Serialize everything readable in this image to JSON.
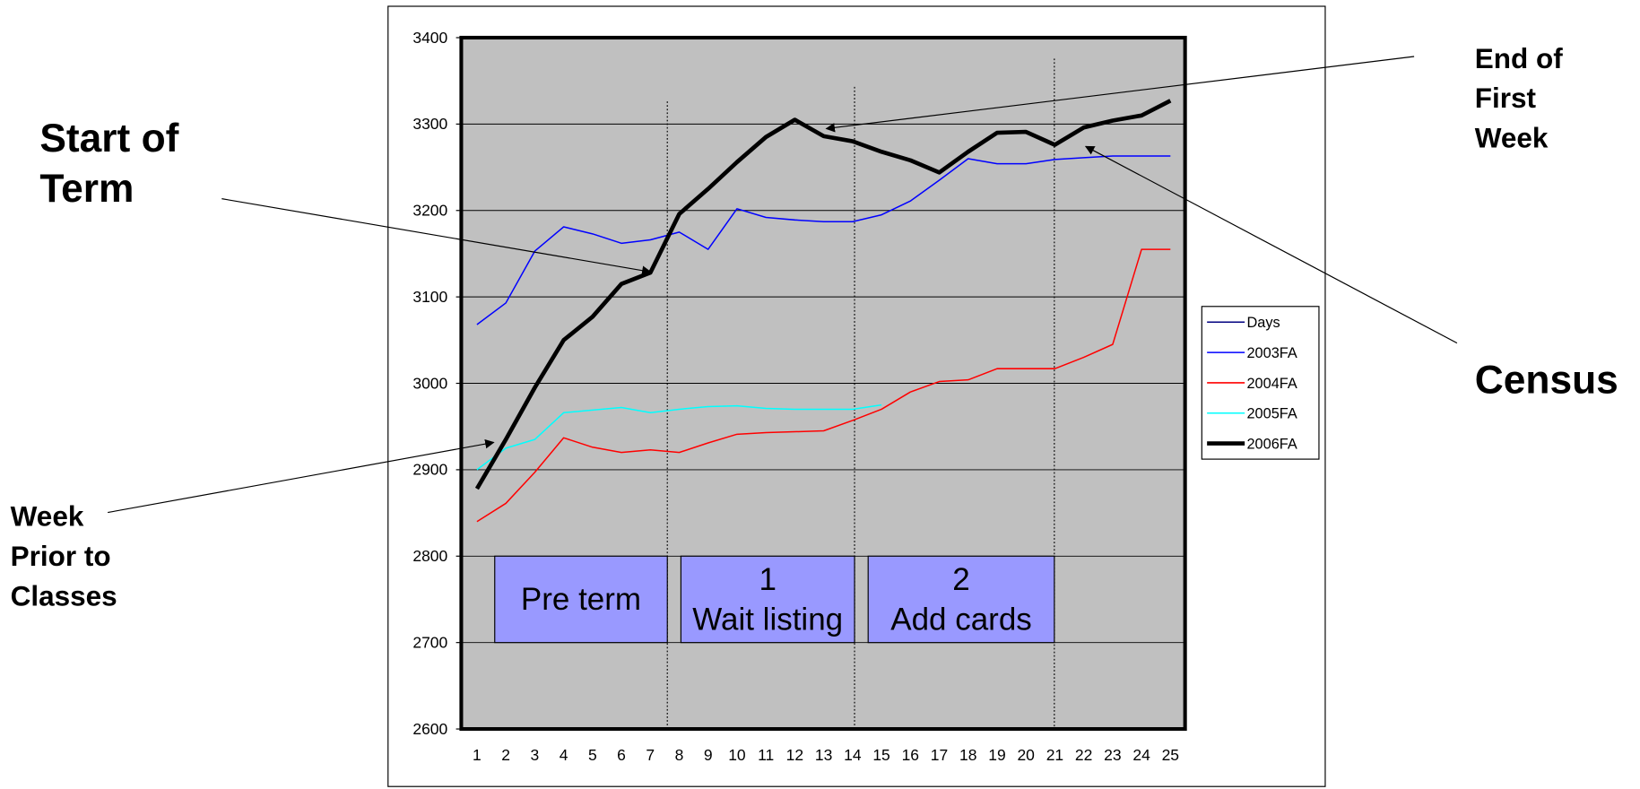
{
  "chart_data": {
    "type": "line",
    "categories": [
      1,
      2,
      3,
      4,
      5,
      6,
      7,
      8,
      9,
      10,
      11,
      12,
      13,
      14,
      15,
      16,
      17,
      18,
      19,
      20,
      21,
      22,
      23,
      24,
      25
    ],
    "ylim": [
      2600,
      3400
    ],
    "yticks": [
      2600,
      2700,
      2800,
      2900,
      3000,
      3100,
      3200,
      3300,
      3400
    ],
    "grid": true,
    "legend": "right",
    "series": [
      {
        "name": "Days",
        "color": "#000080",
        "values": [
          null,
          null,
          null,
          null,
          null,
          null,
          null,
          null,
          null,
          null,
          null,
          null,
          null,
          null,
          null,
          null,
          null,
          null,
          null,
          null,
          null,
          null,
          null,
          null,
          null
        ]
      },
      {
        "name": "2003FA",
        "color": "#0000ff",
        "values": [
          3068,
          3093,
          3153,
          3181,
          3173,
          3162,
          3166,
          3175,
          3155,
          3202,
          3192,
          3189,
          3187,
          3187,
          3195,
          3211,
          3235,
          3260,
          3254,
          3254,
          3259,
          3261,
          3263,
          3263,
          3263
        ]
      },
      {
        "name": "2004FA",
        "color": "#ff0000",
        "values": [
          2840,
          2861,
          2897,
          2937,
          2926,
          2920,
          2923,
          2920,
          2931,
          2941,
          2943,
          2944,
          2945,
          2957,
          2970,
          2990,
          3002,
          3004,
          3017,
          3017,
          3017,
          3030,
          3045,
          3155,
          3155
        ]
      },
      {
        "name": "2005FA",
        "color": "#00ffff",
        "values": [
          2900,
          2925,
          2935,
          2966,
          2969,
          2972,
          2966,
          2970,
          2973,
          2974,
          2971,
          2970,
          2970,
          2970,
          2975,
          null,
          null,
          null,
          null,
          null,
          null,
          null,
          null,
          null,
          null
        ]
      },
      {
        "name": "2006FA",
        "color": "#000000",
        "values": [
          2878,
          2935,
          2995,
          3050,
          3077,
          3115,
          3128,
          3196,
          3225,
          3256,
          3285,
          3305,
          3286,
          3280,
          3268,
          3258,
          3244,
          3268,
          3290,
          3291,
          3276,
          3296,
          3304,
          3310,
          3327
        ]
      }
    ],
    "phases": [
      {
        "lines": [
          "Pre term"
        ]
      },
      {
        "lines": [
          "1",
          "Wait listing"
        ]
      },
      {
        "lines": [
          "2",
          "Add cards"
        ]
      }
    ],
    "annotations": [
      {
        "lines": [
          "Start of",
          "Term"
        ]
      },
      {
        "lines": [
          "End of",
          "First",
          "Week"
        ]
      },
      {
        "lines": [
          "Census"
        ]
      },
      {
        "lines": [
          "Week",
          "Prior to",
          "Classes"
        ]
      }
    ]
  }
}
